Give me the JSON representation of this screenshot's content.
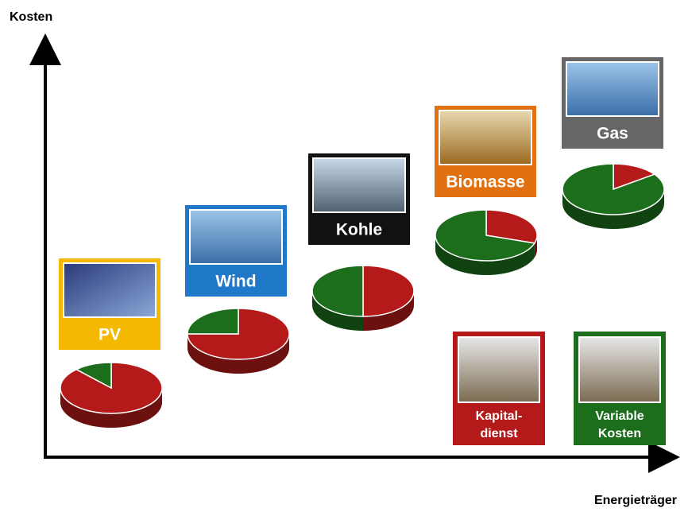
{
  "axes": {
    "y_label": "Kosten",
    "x_label": "Energieträger"
  },
  "nodes": [
    {
      "label": "PV",
      "color": "#f5b800",
      "kapitaldienst": 88,
      "variable": 12
    },
    {
      "label": "Wind",
      "color": "#1f78c8",
      "kapitaldienst": 75,
      "variable": 25
    },
    {
      "label": "Kohle",
      "color": "#111111",
      "kapitaldienst": 50,
      "variable": 50
    },
    {
      "label": "Biomasse",
      "color": "#e07010",
      "kapitaldienst": 30,
      "variable": 70
    },
    {
      "label": "Gas",
      "color": "#666666",
      "kapitaldienst": 15,
      "variable": 85
    }
  ],
  "legend": [
    {
      "lines": [
        "Kapital-",
        "dienst"
      ],
      "color": "#b51a1a"
    },
    {
      "lines": [
        "Variable",
        "Kosten"
      ],
      "color": "#1c6e1c"
    }
  ]
}
